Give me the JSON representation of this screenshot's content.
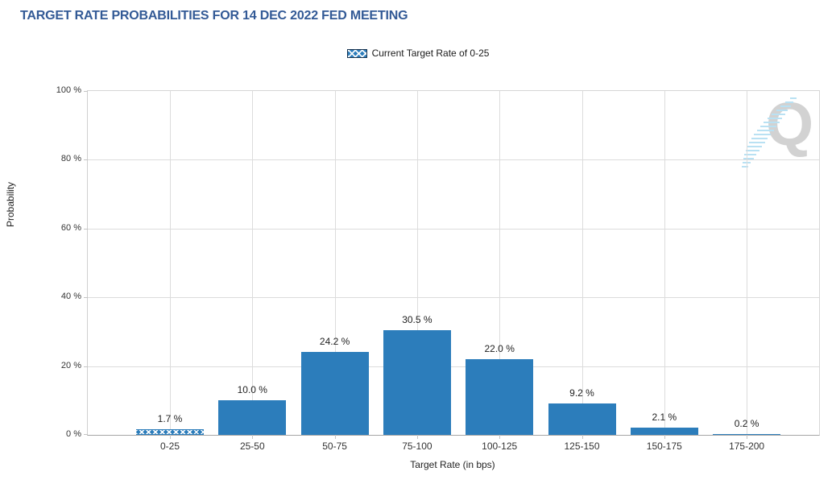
{
  "header": {
    "title": "TARGET RATE PROBABILITIES FOR 14 DEC 2022 FED MEETING",
    "title_color": "#335a96"
  },
  "legend": {
    "label": "Current Target Rate of 0-25",
    "swatch_style": "blue-crosshatch",
    "swatch_border_color": "#16324f"
  },
  "watermark": {
    "letter": "Q",
    "dash_color": "#b9e1f3",
    "letter_color": "#d2d2d2"
  },
  "chart_data": {
    "type": "bar",
    "title": "TARGET RATE PROBABILITIES FOR 14 DEC 2022 FED MEETING",
    "categories": [
      "0-25",
      "25-50",
      "50-75",
      "75-100",
      "100-125",
      "125-150",
      "150-175",
      "175-200"
    ],
    "values": [
      1.7,
      10.0,
      24.2,
      30.5,
      22.0,
      9.2,
      2.1,
      0.2
    ],
    "value_labels": [
      "1.7 %",
      "10.0 %",
      "24.2 %",
      "30.5 %",
      "22.0 %",
      "9.2 %",
      "2.1 %",
      "0.2 %"
    ],
    "highlighted_category": "0-25",
    "highlight_style": "white-crosshatch-pattern",
    "xlabel": "Target Rate (in bps)",
    "ylabel": "Probability",
    "ylim": [
      0,
      100
    ],
    "yticks": [
      "0 %",
      "20 %",
      "40 %",
      "60 %",
      "80 %",
      "100 %"
    ],
    "grid": true,
    "gridlines": "horizontal-at-20pct-steps-and-vertical-at-category-centers",
    "legend": [
      "Current Target Rate of 0-25"
    ],
    "legend_position": "top-center",
    "bar_color": "#2c7dbb"
  }
}
